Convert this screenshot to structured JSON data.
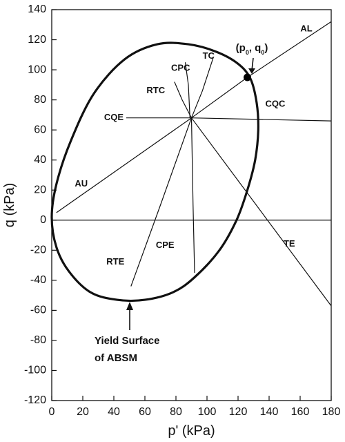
{
  "chart_data": {
    "type": "line",
    "xlabel": "p' (kPa)",
    "ylabel": "q (kPa)",
    "xlim": [
      0,
      180
    ],
    "ylim": [
      -120,
      140
    ],
    "x_ticks": [
      0,
      20,
      40,
      60,
      80,
      100,
      120,
      140,
      160,
      180
    ],
    "y_ticks": [
      -120,
      -100,
      -80,
      -60,
      -40,
      -20,
      0,
      20,
      40,
      60,
      80,
      100,
      120,
      140
    ],
    "grid": false,
    "origin": {
      "p": 90,
      "q": 68
    },
    "stress_point": {
      "label": "(p0, q0)",
      "p": 126,
      "q": 95
    },
    "yield_surface_label": [
      "Yield Surface",
      "of ABSM"
    ],
    "ellipse_points": [
      [
        0,
        2
      ],
      [
        3,
        24
      ],
      [
        12,
        52
      ],
      [
        27,
        84
      ],
      [
        47,
        107
      ],
      [
        68,
        117
      ],
      [
        88,
        117
      ],
      [
        106,
        112
      ],
      [
        120,
        104
      ],
      [
        128,
        94
      ],
      [
        132,
        78
      ],
      [
        133,
        60
      ],
      [
        131,
        40
      ],
      [
        126,
        20
      ],
      [
        119,
        0
      ],
      [
        108,
        -20
      ],
      [
        92,
        -38
      ],
      [
        78,
        -48
      ],
      [
        60,
        -53
      ],
      [
        42,
        -53
      ],
      [
        25,
        -48
      ],
      [
        11,
        -34
      ],
      [
        3,
        -18
      ],
      [
        0,
        2
      ]
    ],
    "series": [
      {
        "name": "AL",
        "points": [
          [
            90,
            68
          ],
          [
            126,
            95
          ],
          [
            180,
            132
          ]
        ]
      },
      {
        "name": "AU",
        "points": [
          [
            90,
            68
          ],
          [
            3,
            5
          ]
        ]
      },
      {
        "name": "TC",
        "points": [
          [
            90,
            68
          ],
          [
            97,
            86
          ],
          [
            104,
            108
          ]
        ]
      },
      {
        "name": "CPC",
        "points": [
          [
            89,
            68
          ],
          [
            88,
            90
          ],
          [
            86,
            105
          ]
        ]
      },
      {
        "name": "RTC",
        "points": [
          [
            90,
            68
          ],
          [
            84,
            80
          ],
          [
            79,
            92
          ]
        ]
      },
      {
        "name": "CQE",
        "points": [
          [
            90,
            68
          ],
          [
            61,
            68
          ],
          [
            48,
            68
          ]
        ]
      },
      {
        "name": "CQC",
        "points": [
          [
            90,
            68
          ],
          [
            180,
            66
          ]
        ]
      },
      {
        "name": "TE",
        "points": [
          [
            90,
            68
          ],
          [
            180,
            -57
          ]
        ]
      },
      {
        "name": "RTE",
        "points": [
          [
            90,
            68
          ],
          [
            70,
            10
          ],
          [
            51,
            -44
          ]
        ]
      },
      {
        "name": "CPE",
        "points": [
          [
            90,
            68
          ],
          [
            91,
            10
          ],
          [
            92,
            -35
          ]
        ]
      }
    ],
    "labels": [
      {
        "text": "AL",
        "p": 164,
        "q": 127
      },
      {
        "text": "AU",
        "p": 19,
        "q": 24
      },
      {
        "text": "TC",
        "p": 101,
        "q": 109
      },
      {
        "text": "CPC",
        "p": 83,
        "q": 101
      },
      {
        "text": "RTC",
        "p": 67,
        "q": 86
      },
      {
        "text": "CQE",
        "p": 40,
        "q": 68
      },
      {
        "text": "CQC",
        "p": 144,
        "q": 77
      },
      {
        "text": "TE",
        "p": 153,
        "q": -16
      },
      {
        "text": "RTE",
        "p": 41,
        "q": -28
      },
      {
        "text": "CPE",
        "p": 73,
        "q": -17
      }
    ],
    "colors": {
      "line": "#111111",
      "marker": "#000000",
      "background": "#ffffff"
    }
  }
}
